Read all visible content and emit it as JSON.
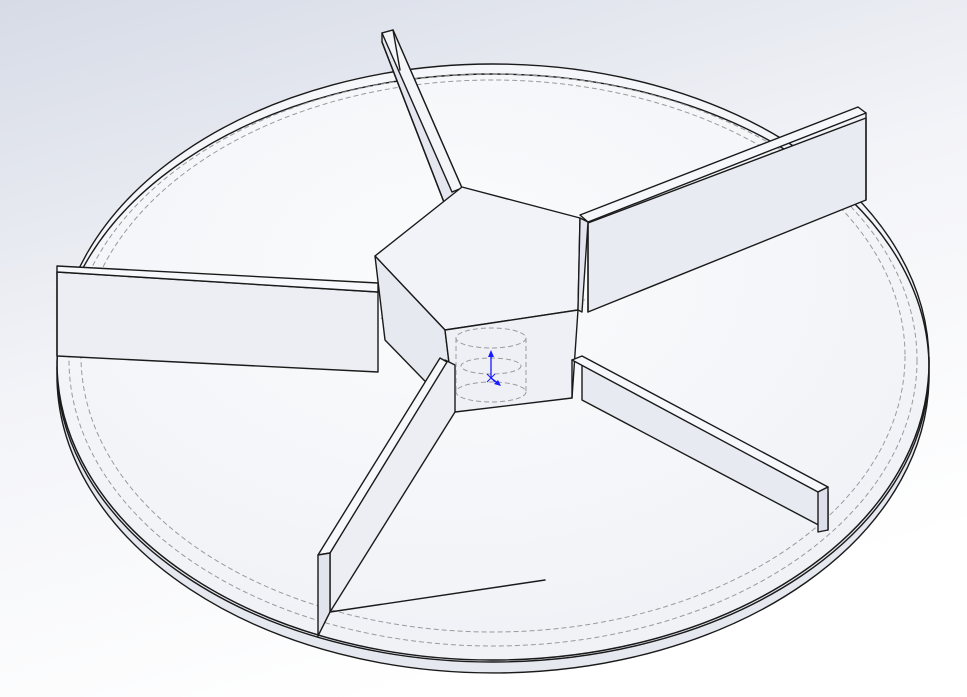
{
  "viewport": {
    "background_top": "#d6dbe6",
    "background_mid": "#f3f4f8",
    "background_bottom": "#ffffff"
  },
  "model": {
    "edge_color": "#1a1a1a",
    "hidden_edge_color": "#9a9a9a",
    "face_light": "#f7f8fb",
    "face_mid": "#eceef5",
    "face_dark": "#dfe2ec",
    "blade_count": 5
  },
  "triad": {
    "color": "#1a1aff",
    "icon": "coordinate-origin-icon"
  }
}
